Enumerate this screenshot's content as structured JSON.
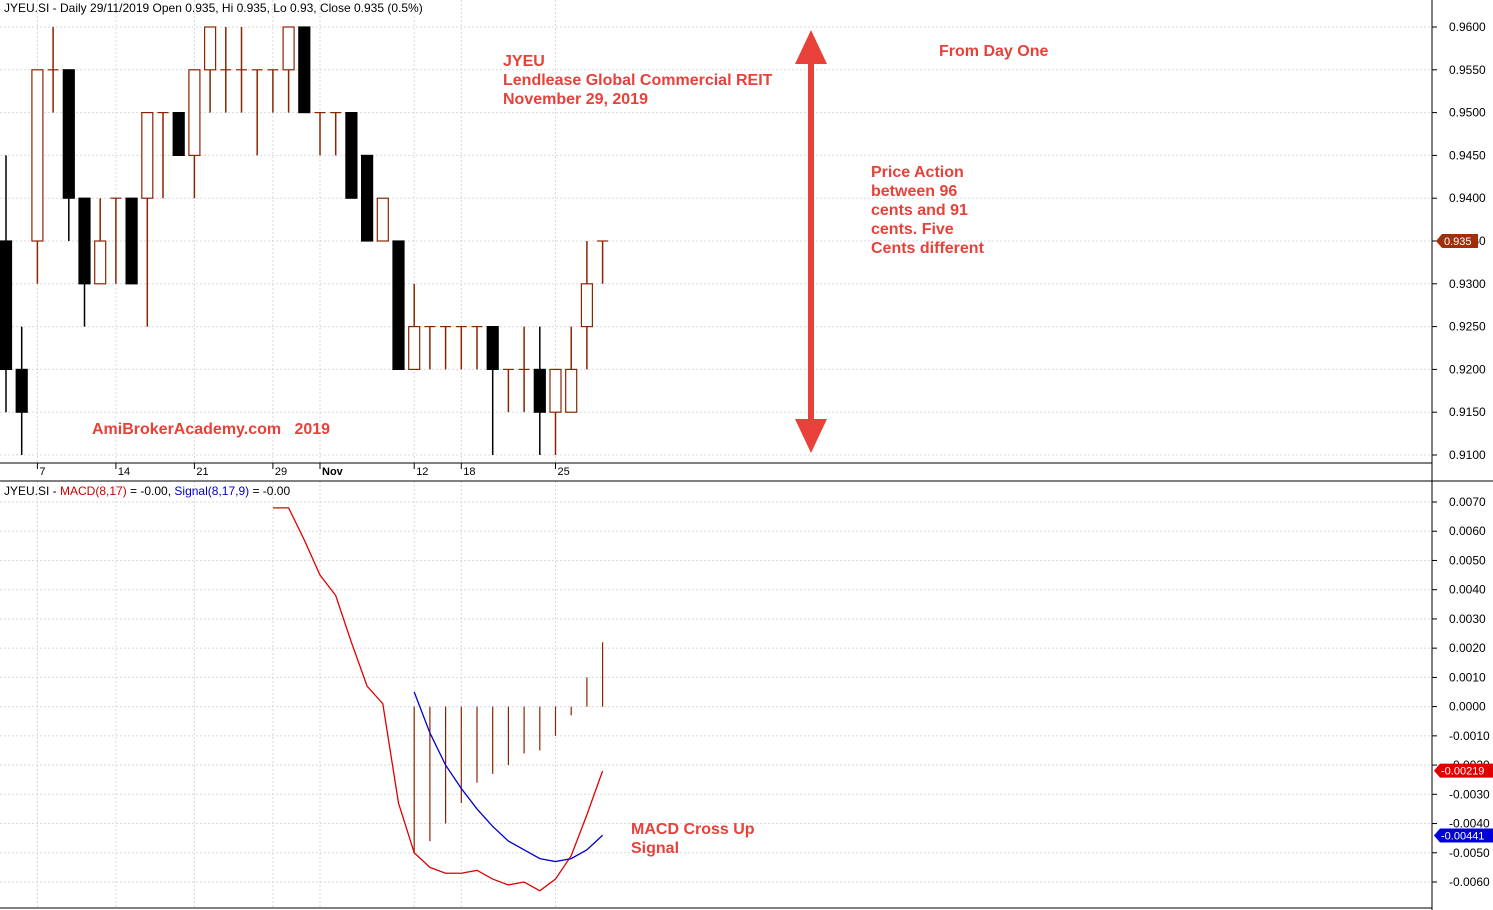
{
  "header": {
    "price_title": "JYEU.SI - Daily 29/11/2019 Open 0.935, Hi 0.935, Lo 0.93, Close 0.935 (0.5%)",
    "macd_prefix": "JYEU.SI - ",
    "macd_label": "MACD(8,17)",
    "macd_value": " = -0.00, ",
    "signal_label": "Signal(8,17,9)",
    "signal_value": " = -0.00"
  },
  "annotations": {
    "title_line1": "JYEU",
    "title_line2": "Lendlease Global Commercial REIT",
    "title_line3": "November 29, 2019",
    "from_day_one": "From Day One",
    "price_action": [
      "Price Action",
      "between 96",
      "cents and 91",
      "cents. Five",
      "Cents different"
    ],
    "watermark": "AmiBrokerAcademy.com   2019",
    "macd_cross": [
      "MACD Cross Up",
      "Signal"
    ]
  },
  "colors": {
    "up": "#8b2500",
    "down": "#000000",
    "macd": "#e00000",
    "signal": "#0000cc",
    "grid": "#d9d9d9",
    "annotation": "#e8413a",
    "price_tag": "#a0300a",
    "macd_tag": "#e00000",
    "signal_tag": "#0000dd"
  },
  "chart_data": [
    {
      "type": "candlestick",
      "title": "JYEU.SI - Daily",
      "ylim": [
        0.9095,
        0.9625
      ],
      "yticks": [
        "0.9600",
        "0.9550",
        "0.9500",
        "0.9450",
        "0.9400",
        "0.9350",
        "0.9300",
        "0.9250",
        "0.9200",
        "0.9150",
        "0.9100"
      ],
      "xticks": [
        "7",
        "14",
        "21",
        "29",
        "Nov",
        "12",
        "18",
        "25"
      ],
      "last_price_label": "0.935",
      "candles": [
        {
          "o": 0.935,
          "h": 0.945,
          "l": 0.915,
          "c": 0.92
        },
        {
          "o": 0.92,
          "h": 0.925,
          "l": 0.91,
          "c": 0.915
        },
        {
          "o": 0.935,
          "h": 0.955,
          "l": 0.93,
          "c": 0.955
        },
        {
          "o": 0.955,
          "h": 0.96,
          "l": 0.95,
          "c": 0.955
        },
        {
          "o": 0.955,
          "h": 0.955,
          "l": 0.935,
          "c": 0.94
        },
        {
          "o": 0.94,
          "h": 0.94,
          "l": 0.925,
          "c": 0.93
        },
        {
          "o": 0.93,
          "h": 0.94,
          "l": 0.93,
          "c": 0.935
        },
        {
          "o": 0.94,
          "h": 0.94,
          "l": 0.93,
          "c": 0.94
        },
        {
          "o": 0.94,
          "h": 0.94,
          "l": 0.93,
          "c": 0.93
        },
        {
          "o": 0.94,
          "h": 0.95,
          "l": 0.925,
          "c": 0.95
        },
        {
          "o": 0.95,
          "h": 0.95,
          "l": 0.94,
          "c": 0.95
        },
        {
          "o": 0.95,
          "h": 0.95,
          "l": 0.945,
          "c": 0.945
        },
        {
          "o": 0.945,
          "h": 0.955,
          "l": 0.94,
          "c": 0.955
        },
        {
          "o": 0.955,
          "h": 0.96,
          "l": 0.95,
          "c": 0.96
        },
        {
          "o": 0.955,
          "h": 0.96,
          "l": 0.95,
          "c": 0.955
        },
        {
          "o": 0.955,
          "h": 0.96,
          "l": 0.95,
          "c": 0.955
        },
        {
          "o": 0.955,
          "h": 0.955,
          "l": 0.945,
          "c": 0.955
        },
        {
          "o": 0.955,
          "h": 0.955,
          "l": 0.95,
          "c": 0.955
        },
        {
          "o": 0.955,
          "h": 0.96,
          "l": 0.95,
          "c": 0.96
        },
        {
          "o": 0.96,
          "h": 0.96,
          "l": 0.95,
          "c": 0.95
        },
        {
          "o": 0.95,
          "h": 0.95,
          "l": 0.945,
          "c": 0.95
        },
        {
          "o": 0.95,
          "h": 0.95,
          "l": 0.945,
          "c": 0.95
        },
        {
          "o": 0.95,
          "h": 0.95,
          "l": 0.94,
          "c": 0.94
        },
        {
          "o": 0.945,
          "h": 0.945,
          "l": 0.935,
          "c": 0.935
        },
        {
          "o": 0.935,
          "h": 0.94,
          "l": 0.935,
          "c": 0.94
        },
        {
          "o": 0.935,
          "h": 0.935,
          "l": 0.92,
          "c": 0.92
        },
        {
          "o": 0.92,
          "h": 0.93,
          "l": 0.92,
          "c": 0.925
        },
        {
          "o": 0.925,
          "h": 0.925,
          "l": 0.92,
          "c": 0.925
        },
        {
          "o": 0.925,
          "h": 0.925,
          "l": 0.92,
          "c": 0.925
        },
        {
          "o": 0.925,
          "h": 0.925,
          "l": 0.92,
          "c": 0.925
        },
        {
          "o": 0.925,
          "h": 0.925,
          "l": 0.92,
          "c": 0.925
        },
        {
          "o": 0.925,
          "h": 0.925,
          "l": 0.91,
          "c": 0.92
        },
        {
          "o": 0.92,
          "h": 0.92,
          "l": 0.915,
          "c": 0.92
        },
        {
          "o": 0.92,
          "h": 0.925,
          "l": 0.915,
          "c": 0.92
        },
        {
          "o": 0.92,
          "h": 0.925,
          "l": 0.91,
          "c": 0.915
        },
        {
          "o": 0.915,
          "h": 0.92,
          "l": 0.91,
          "c": 0.92
        },
        {
          "o": 0.915,
          "h": 0.925,
          "l": 0.915,
          "c": 0.92
        },
        {
          "o": 0.925,
          "h": 0.935,
          "l": 0.92,
          "c": 0.93
        },
        {
          "o": 0.935,
          "h": 0.935,
          "l": 0.93,
          "c": 0.935
        }
      ]
    },
    {
      "type": "line",
      "title": "MACD(8,17) / Signal(8,17,9)",
      "ylim": [
        -0.0066,
        0.0072
      ],
      "yticks": [
        "0.0070",
        "0.0060",
        "0.0050",
        "0.0040",
        "0.0030",
        "0.0020",
        "0.0010",
        "0.0000",
        "-0.0010",
        "-0.0020",
        "-0.0030",
        "-0.0040",
        "-0.0050",
        "-0.0060"
      ],
      "last_macd_label": "-0.00219",
      "last_signal_label": "-0.00441",
      "series": [
        {
          "name": "MACD(8,17)",
          "start_index": 17,
          "values": [
            0.0068,
            0.0068,
            0.0057,
            0.0045,
            0.0038,
            0.0022,
            0.0007,
            0.0001,
            -0.0033,
            -0.005,
            -0.0055,
            -0.0057,
            -0.0057,
            -0.0056,
            -0.0059,
            -0.0061,
            -0.006,
            -0.0063,
            -0.0059,
            -0.0051,
            -0.0037,
            -0.0022
          ]
        },
        {
          "name": "Signal(8,17,9)",
          "start_index": 26,
          "values": [
            0.0005,
            -0.0009,
            -0.002,
            -0.0028,
            -0.0035,
            -0.0041,
            -0.0046,
            -0.0049,
            -0.0052,
            -0.0053,
            -0.0052,
            -0.0049,
            -0.0044
          ]
        },
        {
          "name": "Histogram",
          "start_index": 26,
          "values": [
            -0.005,
            -0.0046,
            -0.004,
            -0.0033,
            -0.0026,
            -0.0023,
            -0.002,
            -0.0016,
            -0.0015,
            -0.001,
            -0.0003,
            0.001,
            0.0022
          ]
        }
      ]
    }
  ]
}
